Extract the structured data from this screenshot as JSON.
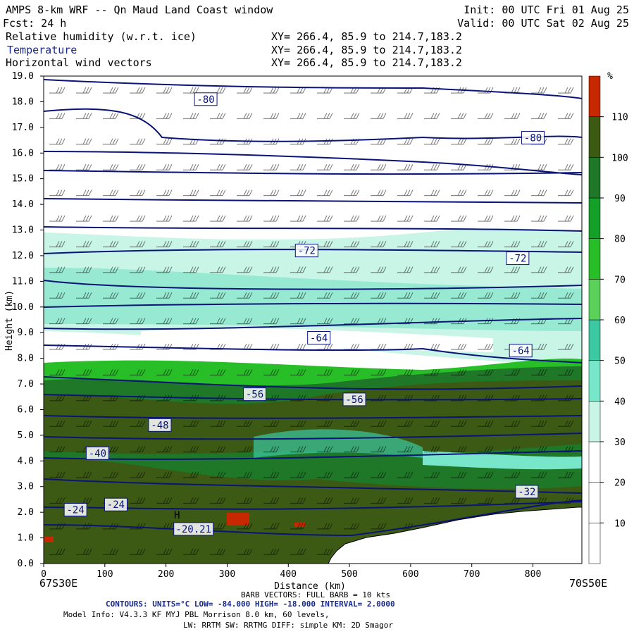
{
  "header": {
    "title": "AMPS 8-km WRF -- Qn Maud Land Coast window",
    "init": "Init: 00 UTC Fri 01 Aug 25",
    "fcst": "Fcst:   24 h",
    "valid": "Valid: 00 UTC Sat 02 Aug 25",
    "fields": [
      {
        "name": "Relative humidity (w.r.t. ice)",
        "xy": "XY= 266.4, 85.9 to 214.7,183.2"
      },
      {
        "name": "Temperature",
        "xy": "XY= 266.4, 85.9 to 214.7,183.2"
      },
      {
        "name": "Horizontal wind vectors",
        "xy": "XY= 266.4, 85.9 to 214.7,183.2"
      }
    ]
  },
  "chart_data": {
    "type": "heatmap",
    "title": "AMPS 8-km WRF -- Qn Maud Land Coast window",
    "xlabel": "Distance (km)",
    "ylabel": "Height (km)",
    "xlim": [
      0,
      880
    ],
    "ylim": [
      0,
      19
    ],
    "x_ticks": [
      0,
      100,
      200,
      300,
      400,
      500,
      600,
      700,
      800
    ],
    "y_ticks": [
      "0.0",
      "1.0",
      "2.0",
      "3.0",
      "4.0",
      "5.0",
      "6.0",
      "7.0",
      "8.0",
      "9.0",
      "10.0",
      "11.0",
      "12.0",
      "13.0",
      "14.0",
      "15.0",
      "16.0",
      "17.0",
      "18.0",
      "19.0"
    ],
    "left_endpoint": "67S30E",
    "right_endpoint": "70S50E",
    "colorbar": {
      "unit": "%",
      "levels": [
        10,
        20,
        30,
        40,
        50,
        60,
        70,
        80,
        90,
        100,
        110
      ],
      "colors": [
        "#ffffff",
        "#ffffff",
        "#ffffff",
        "#c8f5e6",
        "#78e6c8",
        "#3cc8a0",
        "#5ad25a",
        "#28be28",
        "#14a028",
        "#1e7828",
        "#3c5a14",
        "#c82800"
      ]
    },
    "contour_labels": [
      {
        "text": "-80",
        "x": 265,
        "z": 18.1
      },
      {
        "text": "-80",
        "x": 800,
        "z": 16.6
      },
      {
        "text": "-72",
        "x": 430,
        "z": 12.2
      },
      {
        "text": "-72",
        "x": 775,
        "z": 11.9
      },
      {
        "text": "-64",
        "x": 450,
        "z": 8.8
      },
      {
        "text": "-64",
        "x": 780,
        "z": 8.3
      },
      {
        "text": "-56",
        "x": 345,
        "z": 6.6
      },
      {
        "text": "-56",
        "x": 508,
        "z": 6.4
      },
      {
        "text": "-48",
        "x": 190,
        "z": 5.4
      },
      {
        "text": "-40",
        "x": 88,
        "z": 4.3
      },
      {
        "text": "-24",
        "x": 52,
        "z": 2.1
      },
      {
        "text": "-24",
        "x": 118,
        "z": 2.3
      },
      {
        "text": "-32",
        "x": 790,
        "z": 2.8
      },
      {
        "text": "-20.21",
        "x": 245,
        "z": 1.35
      },
      {
        "text": "H",
        "x": 218,
        "z": 1.9
      }
    ],
    "terrain_height_km": [
      [
        0,
        0
      ],
      [
        460,
        0
      ],
      [
        470,
        0.4
      ],
      [
        490,
        0.9
      ],
      [
        520,
        1.2
      ],
      [
        560,
        1.4
      ],
      [
        600,
        1.6
      ],
      [
        650,
        1.9
      ],
      [
        700,
        2.1
      ],
      [
        740,
        2.25
      ],
      [
        780,
        2.35
      ],
      [
        820,
        2.45
      ],
      [
        860,
        2.5
      ],
      [
        880,
        2.5
      ]
    ]
  },
  "footer": {
    "barb_note": "BARB VECTORS:  FULL BARB = 10 kts",
    "contours_text": "CONTOURS:  UNITS=°C   LOW= -84.000      HIGH= -18.000      INTERVAL=   2.0000",
    "model_info": "Model Info: V4.3.3   KF       MYJ PBL  Morrison           8.0 km,  60 levels,",
    "model_info2": "LW: RRTM SW: RRTMG   DIFF: simple KM: 2D Smagor"
  }
}
